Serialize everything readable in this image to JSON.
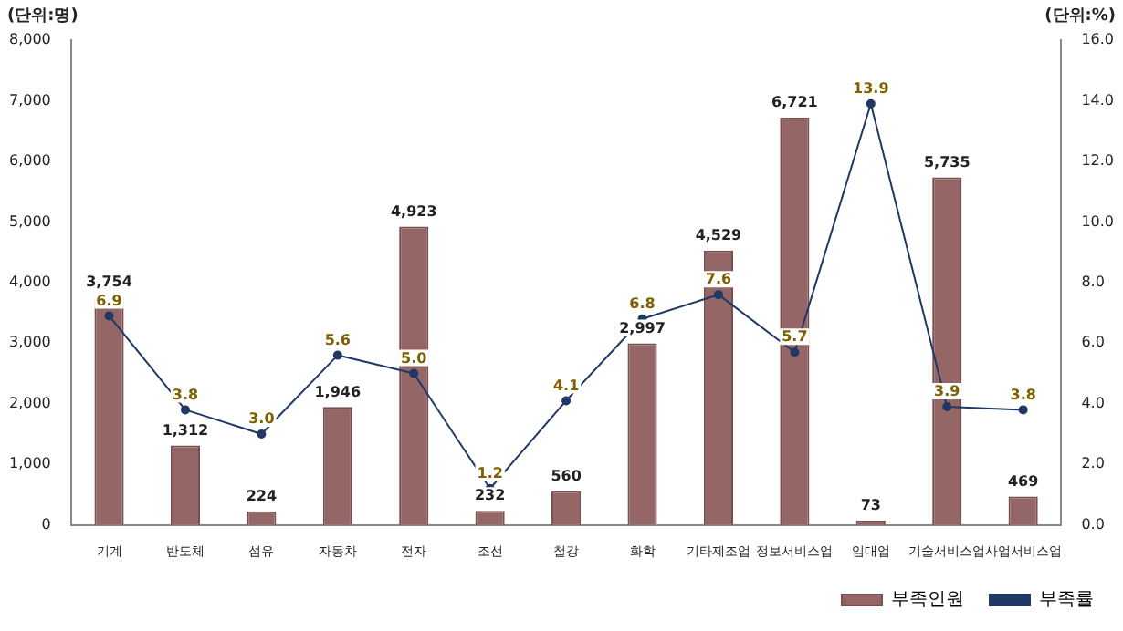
{
  "chart_data": {
    "type": "bar",
    "ylabel": "(단위:명)",
    "y2label": "(단위:%)",
    "categories": [
      "기계",
      "반도체",
      "섬유",
      "자동차",
      "전자",
      "조선",
      "철강",
      "화학",
      "기타제조업",
      "정보서비스업",
      "임대업",
      "기술서비스업",
      "사업서비스업"
    ],
    "series": [
      {
        "name": "부족인원",
        "color": "#946666",
        "values": [
          3754,
          1312,
          224,
          1946,
          4923,
          232,
          560,
          2997,
          4529,
          6721,
          73,
          5735,
          469
        ],
        "value_labels": [
          "3,754",
          "1,312",
          "224",
          "1,946",
          "4,923",
          "232",
          "560",
          "2,997",
          "4,529",
          "6,721",
          "73",
          "5,735",
          "469"
        ]
      },
      {
        "name": "부족률",
        "type": "line",
        "axis": "y2",
        "color": "#1f3864",
        "marker": "circle",
        "values": [
          6.9,
          3.8,
          3.0,
          5.6,
          5.0,
          1.2,
          4.1,
          6.8,
          7.6,
          5.7,
          13.9,
          3.9,
          3.8
        ],
        "value_labels": [
          "6.9",
          "3.8",
          "3.0",
          "5.6",
          "5.0",
          "1.2",
          "4.1",
          "6.8",
          "7.6",
          "5.7",
          "13.9",
          "3.9",
          "3.8"
        ]
      }
    ],
    "ylim": [
      0,
      8000
    ],
    "yticks": [
      {
        "value": 0,
        "label": "0"
      },
      {
        "value": 1000,
        "label": "1,000"
      },
      {
        "value": 2000,
        "label": "2,000"
      },
      {
        "value": 3000,
        "label": "3,000"
      },
      {
        "value": 4000,
        "label": "4,000"
      },
      {
        "value": 5000,
        "label": "5,000"
      },
      {
        "value": 6000,
        "label": "6,000"
      },
      {
        "value": 7000,
        "label": "7,000"
      },
      {
        "value": 8000,
        "label": "8,000"
      }
    ],
    "y2lim": [
      0,
      16
    ],
    "y2ticks": [
      {
        "value": 0,
        "label": "0.0"
      },
      {
        "value": 2,
        "label": "2.0"
      },
      {
        "value": 4,
        "label": "4.0"
      },
      {
        "value": 6,
        "label": "6.0"
      },
      {
        "value": 8,
        "label": "8.0"
      },
      {
        "value": 10,
        "label": "10.0"
      },
      {
        "value": 12,
        "label": "12.0"
      },
      {
        "value": 14,
        "label": "14.0"
      },
      {
        "value": 16,
        "label": "16.0"
      }
    ],
    "legend": "bottom right",
    "grid": false
  }
}
